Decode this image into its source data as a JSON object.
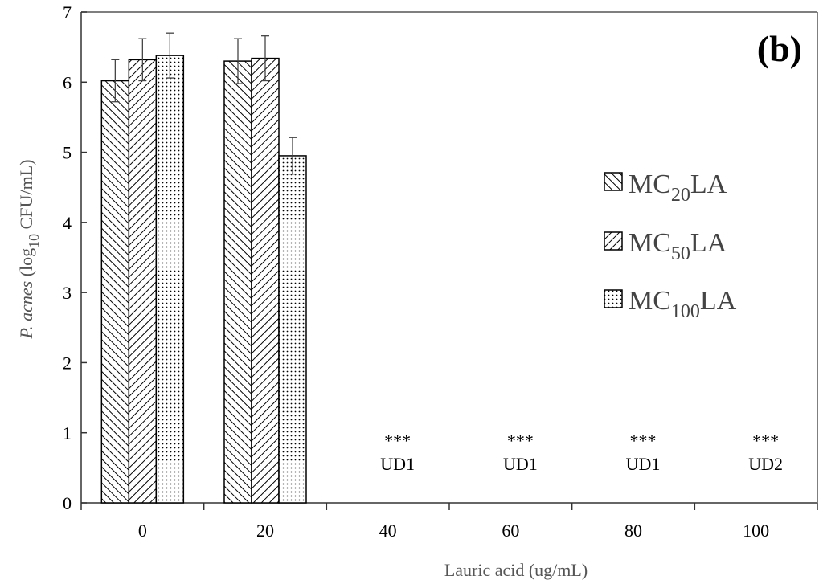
{
  "chart_data": {
    "type": "bar",
    "panel_label": "(b)",
    "xlabel": "Lauric acid (ug/mL)",
    "ylabel_parts": {
      "italic": "P. acnes",
      "pre": " (log",
      "sub": "10",
      "post": " CFU/mL)"
    },
    "categories": [
      "0",
      "20",
      "40",
      "60",
      "80",
      "100"
    ],
    "ylim": [
      0,
      7
    ],
    "yticks": [
      "0",
      "1",
      "2",
      "3",
      "4",
      "5",
      "6",
      "7"
    ],
    "legend_position": "right",
    "series": [
      {
        "name_parts": {
          "main": "MC",
          "sub": "20",
          "tail": "LA"
        },
        "pattern": "diag-back",
        "values": [
          6.02,
          6.3,
          null,
          null,
          null,
          null
        ],
        "errors": [
          0.3,
          0.32,
          null,
          null,
          null,
          null
        ]
      },
      {
        "name_parts": {
          "main": "MC",
          "sub": "50",
          "tail": "LA"
        },
        "pattern": "diag-fwd",
        "values": [
          6.32,
          6.34,
          null,
          null,
          null,
          null
        ],
        "errors": [
          0.3,
          0.32,
          null,
          null,
          null,
          null
        ]
      },
      {
        "name_parts": {
          "main": "MC",
          "sub": "100",
          "tail": "LA"
        },
        "pattern": "dots",
        "values": [
          6.38,
          4.95,
          null,
          null,
          null,
          null
        ],
        "errors": [
          0.32,
          0.26,
          null,
          null,
          null,
          null
        ]
      }
    ],
    "annotations": [
      {
        "category": "40",
        "stars": "***",
        "label": "UD1"
      },
      {
        "category": "60",
        "stars": "***",
        "label": "UD1"
      },
      {
        "category": "80",
        "stars": "***",
        "label": "UD1"
      },
      {
        "category": "100",
        "stars": "***",
        "label": "UD2"
      }
    ]
  }
}
